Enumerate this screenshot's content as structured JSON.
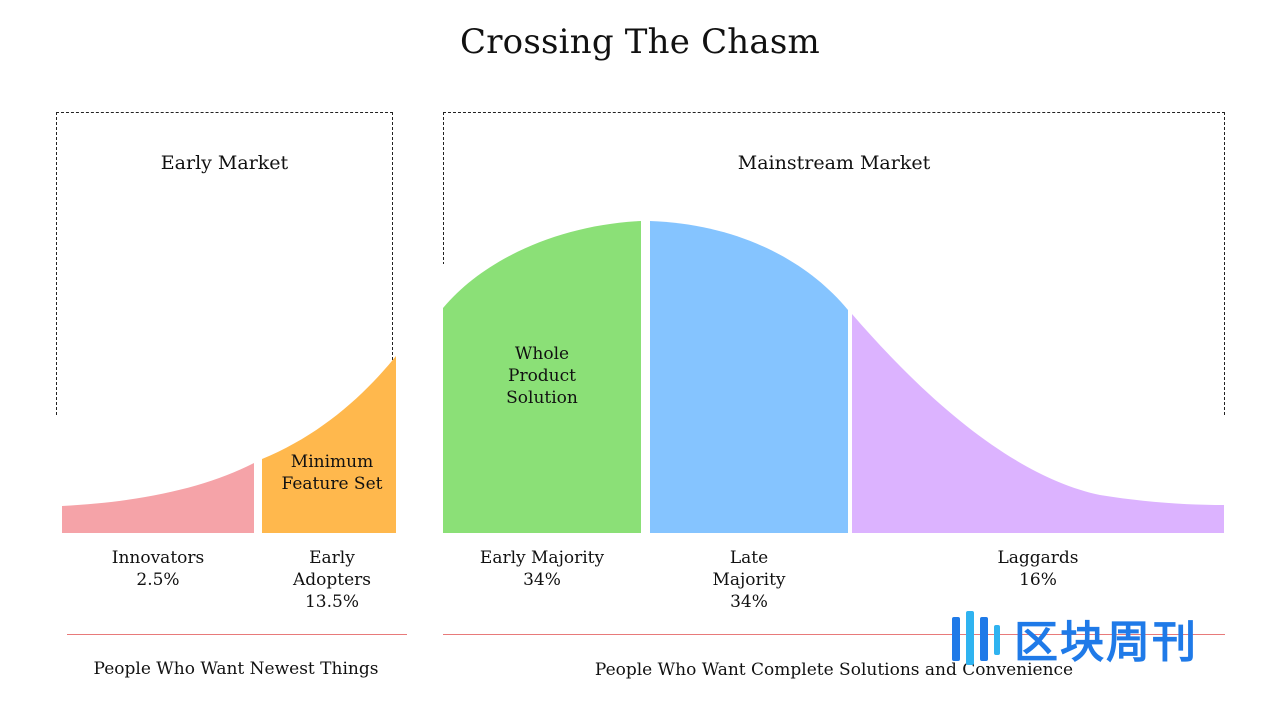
{
  "title": "Crossing The Chasm",
  "markets": {
    "early": "Early Market",
    "mainstream": "Mainstream Market"
  },
  "segments": [
    {
      "id": "innovators",
      "label": "Innovators",
      "share": "2.5%",
      "color": "#f5a3a8"
    },
    {
      "id": "early_adopters",
      "label": "Early Adopters",
      "share": "13.5%",
      "color": "#ffb84d"
    },
    {
      "id": "early_majority",
      "label": "Early Majority",
      "share": "34%",
      "color": "#8be077"
    },
    {
      "id": "late_majority",
      "label": "Late Majority",
      "share": "34%",
      "color": "#85c4ff"
    },
    {
      "id": "laggards",
      "label": "Laggards",
      "share": "16%",
      "color": "#dcb3ff"
    }
  ],
  "inner_labels": {
    "mfs": "Minimum Feature Set",
    "wps": "Whole Product Solution"
  },
  "bottom": {
    "left": "People Who Want Newest Things",
    "right": "People Who Want Complete Solutions and Convenience"
  },
  "watermark": {
    "text": "区块周刊",
    "icon": "watermark-logo-icon",
    "color": "#1f7ae8"
  },
  "colors": {
    "divider": "#e87a7a"
  }
}
